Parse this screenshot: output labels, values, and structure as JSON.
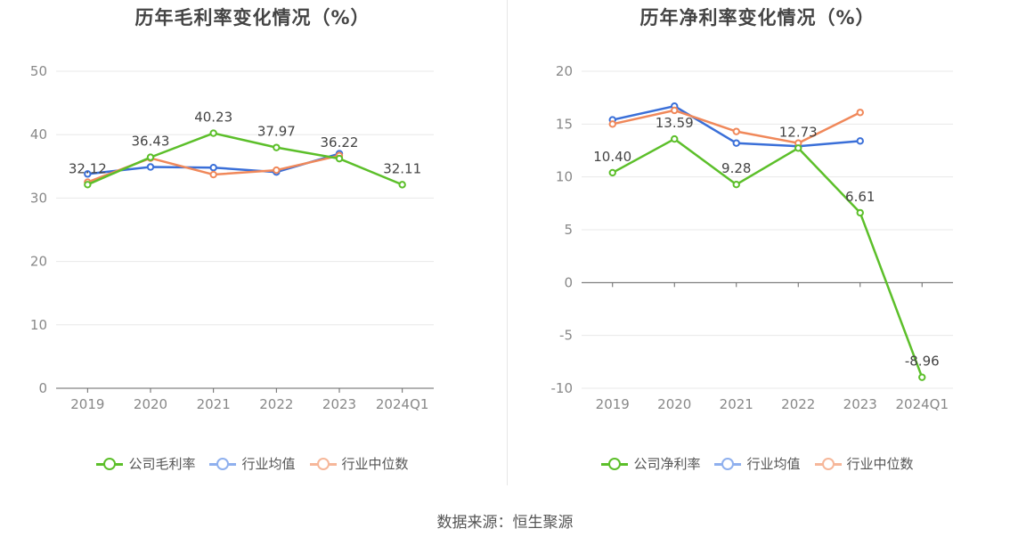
{
  "source_text": "数据来源：恒生聚源",
  "colors": {
    "company": "#5cbf2a",
    "industry_avg": "#3a6fd8",
    "industry_median": "#f0885a",
    "grid": "#e8e8e8",
    "axis": "#666666"
  },
  "chart_data": [
    {
      "type": "line",
      "title": "历年毛利率变化情况（%）",
      "categories": [
        "2019",
        "2020",
        "2021",
        "2022",
        "2023",
        "2024Q1"
      ],
      "ylim": [
        0,
        50
      ],
      "yticks": [
        "0",
        "10",
        "20",
        "30",
        "40",
        "50"
      ],
      "yticks_values": [
        0,
        10,
        20,
        30,
        40,
        50
      ],
      "grid": true,
      "legend": "bottom",
      "legend_labels": [
        "公司毛利率",
        "行业均值",
        "行业中位数"
      ],
      "series": [
        {
          "name": "公司毛利率",
          "values": [
            32.12,
            36.43,
            40.23,
            37.97,
            36.22,
            32.11
          ],
          "labels": [
            "32.12",
            "36.43",
            "40.23",
            "37.97",
            "36.22",
            "32.11"
          ]
        },
        {
          "name": "行业均值",
          "values": [
            33.8,
            34.9,
            34.8,
            34.1,
            37.0,
            null
          ]
        },
        {
          "name": "行业中位数",
          "values": [
            32.5,
            36.3,
            33.7,
            34.4,
            36.7,
            null
          ]
        }
      ]
    },
    {
      "type": "line",
      "title": "历年净利率变化情况（%）",
      "categories": [
        "2019",
        "2020",
        "2021",
        "2022",
        "2023",
        "2024Q1"
      ],
      "ylim": [
        -10,
        20
      ],
      "yticks": [
        "-10",
        "-5",
        "0",
        "5",
        "10",
        "15",
        "20"
      ],
      "yticks_values": [
        -10,
        -5,
        0,
        5,
        10,
        15,
        20
      ],
      "grid": true,
      "legend": "bottom",
      "legend_labels": [
        "公司净利率",
        "行业均值",
        "行业中位数"
      ],
      "series": [
        {
          "name": "公司净利率",
          "values": [
            10.4,
            13.59,
            9.28,
            12.73,
            6.61,
            -8.96
          ],
          "labels": [
            "10.40",
            "13.59",
            "9.28",
            "12.73",
            "6.61",
            "-8.96"
          ]
        },
        {
          "name": "行业均值",
          "values": [
            15.4,
            16.7,
            13.2,
            12.9,
            13.4,
            null
          ]
        },
        {
          "name": "行业中位数",
          "values": [
            15.0,
            16.3,
            14.3,
            13.2,
            16.1,
            null
          ]
        }
      ]
    }
  ]
}
